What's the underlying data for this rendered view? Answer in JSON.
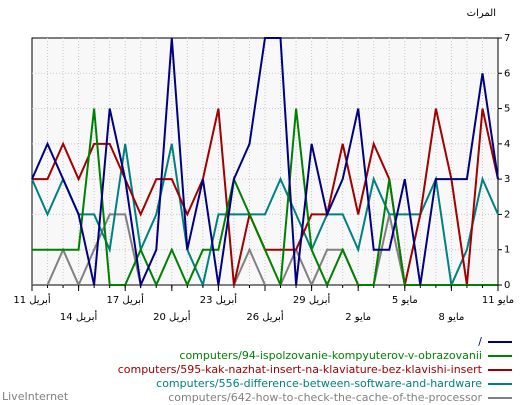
{
  "brand": "LiveInternet",
  "chart_data": {
    "type": "line",
    "ylabel": "المرات",
    "ylim": [
      0,
      7
    ],
    "yticks": [
      0,
      1,
      2,
      3,
      4,
      5,
      6,
      7
    ],
    "grid": true,
    "legend_position": "bottom-right",
    "x_range": [
      0,
      30
    ],
    "x_tick_labels": [
      {
        "x": 0,
        "label": "11 مايو",
        "row": 1
      },
      {
        "x": 3,
        "label": "8 مايو",
        "row": 2
      },
      {
        "x": 6,
        "label": "5 مايو",
        "row": 1
      },
      {
        "x": 9,
        "label": "2 مايو",
        "row": 2
      },
      {
        "x": 12,
        "label": "29 أبريل",
        "row": 1
      },
      {
        "x": 15,
        "label": "26 أبريل",
        "row": 2
      },
      {
        "x": 18,
        "label": "23 أبريل",
        "row": 1
      },
      {
        "x": 21,
        "label": "20 أبريل",
        "row": 2
      },
      {
        "x": 24,
        "label": "17 أبريل",
        "row": 1
      },
      {
        "x": 27,
        "label": "14 أبريل",
        "row": 2
      },
      {
        "x": 30,
        "label": "11 أبريل",
        "row": 1
      }
    ],
    "series": [
      {
        "name": "/",
        "color": "#000080",
        "values": [
          3,
          6,
          3,
          3,
          3,
          0,
          3,
          1,
          1,
          5,
          3,
          2,
          4,
          0,
          7,
          7,
          4,
          3,
          0,
          3,
          1,
          7,
          1,
          0,
          3,
          5,
          0,
          2,
          3,
          4,
          3
        ]
      },
      {
        "name": "computers/94-ispolzovanie-kompyuterov-v-obrazovanii",
        "color": "#008000",
        "values": [
          0,
          0,
          0,
          0,
          0,
          0,
          0,
          3,
          0,
          0,
          1,
          0,
          1,
          5,
          0,
          1,
          2,
          3,
          1,
          1,
          0,
          1,
          0,
          1,
          0,
          0,
          5,
          1,
          1,
          1,
          1
        ]
      },
      {
        "name": "computers/595-kak-nazhat-insert-na-klaviature-bez-klavishi-insert",
        "color": "#a00000",
        "values": [
          3,
          5,
          0,
          3,
          5,
          2,
          0,
          3,
          4,
          2,
          4,
          2,
          2,
          1,
          1,
          1,
          2,
          0,
          5,
          3,
          2,
          3,
          3,
          2,
          3,
          4,
          4,
          3,
          4,
          3,
          3
        ]
      },
      {
        "name": "computers/556-difference-between-software-and-hardware",
        "color": "#008080",
        "values": [
          2,
          3,
          1,
          0,
          3,
          2,
          2,
          2,
          3,
          1,
          2,
          2,
          1,
          2,
          3,
          2,
          2,
          2,
          2,
          0,
          1,
          4,
          2,
          1,
          4,
          1,
          2,
          2,
          3,
          2,
          3
        ]
      },
      {
        "name": "computers/642-how-to-check-the-cache-of-the-processor",
        "color": "#808080",
        "values": [
          0,
          0,
          0,
          0,
          0,
          0,
          0,
          2,
          0,
          0,
          1,
          1,
          0,
          1,
          0,
          0,
          1,
          0,
          0,
          0,
          0,
          0,
          0,
          0,
          2,
          2,
          1,
          0,
          1,
          0,
          0
        ]
      }
    ]
  }
}
